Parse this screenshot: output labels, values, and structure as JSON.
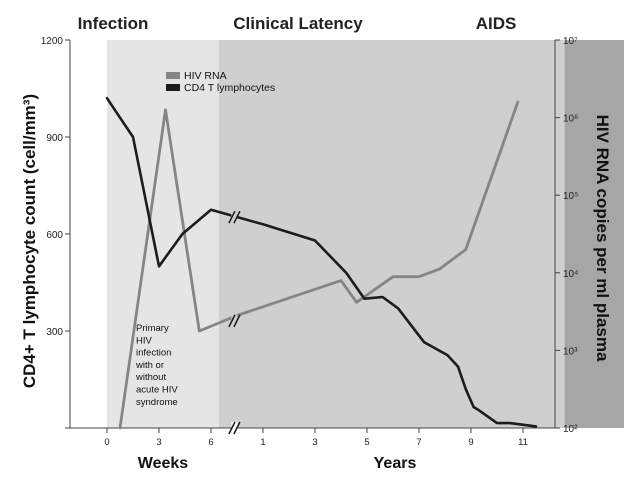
{
  "chart_data": {
    "type": "line",
    "phases": [
      {
        "name": "Infection",
        "start": 0,
        "end": 4.3,
        "color": "#e5e5e5"
      },
      {
        "name": "Clinical Latency",
        "start": 4.3,
        "end": 17.6,
        "color": "#cfcfcf"
      },
      {
        "name": "AIDS",
        "start": 17.6,
        "end": 21.5,
        "color": "#a6a6a6"
      }
    ],
    "x_groups": [
      "Weeks",
      "Years"
    ],
    "x_ticks": [
      {
        "pos": 0,
        "label": "0"
      },
      {
        "pos": 2,
        "label": "3"
      },
      {
        "pos": 4,
        "label": "6"
      },
      {
        "pos": 6,
        "label": "1"
      },
      {
        "pos": 8,
        "label": "3"
      },
      {
        "pos": 10,
        "label": "5"
      },
      {
        "pos": 12,
        "label": "7"
      },
      {
        "pos": 14,
        "label": "9"
      },
      {
        "pos": 16,
        "label": "11"
      }
    ],
    "xlim": [
      -1.45,
      17.6
    ],
    "left_axis": {
      "label": "CD4+ T lymphocyte count (cell/mm³)",
      "ylim": [
        0,
        1200
      ],
      "ticks": [
        "0",
        "300",
        "600",
        "900",
        "1200"
      ],
      "tick_values": [
        0,
        300,
        600,
        900,
        1200
      ],
      "visible_ticks": [
        "300",
        "600",
        "900",
        "1200"
      ]
    },
    "right_axis": {
      "label": "HIV RNA copies per ml plasma",
      "scale": "log",
      "ylim_exp": [
        2,
        7
      ],
      "ticks": [
        "10²",
        "10³",
        "10⁴",
        "10⁵",
        "10⁶",
        "10⁷"
      ],
      "tick_exps": [
        2,
        3,
        4,
        5,
        6,
        7
      ]
    },
    "series": [
      {
        "name": "HIV RNA",
        "color": "#858585",
        "axis": "right",
        "points": [
          [
            0.5,
            2
          ],
          [
            2.25,
            6.1
          ],
          [
            3.55,
            3.25
          ],
          [
            5,
            3.45
          ],
          [
            9,
            3.9
          ],
          [
            9.6,
            3.62
          ],
          [
            11,
            3.95
          ],
          [
            12,
            3.95
          ],
          [
            12.8,
            4.05
          ],
          [
            13.8,
            4.3
          ],
          [
            15.8,
            6.2
          ]
        ]
      },
      {
        "name": "CD4 T lymphocytes",
        "color": "#1c1c1c",
        "axis": "left",
        "points": [
          [
            0,
            1020
          ],
          [
            1,
            900
          ],
          [
            2,
            500
          ],
          [
            2.9,
            600
          ],
          [
            4,
            675
          ],
          [
            6,
            630
          ],
          [
            8,
            580
          ],
          [
            9.2,
            480
          ],
          [
            9.9,
            400
          ],
          [
            10.6,
            405
          ],
          [
            11.2,
            370
          ],
          [
            12.2,
            265
          ],
          [
            13.1,
            225
          ],
          [
            13.5,
            190
          ],
          [
            13.8,
            120
          ],
          [
            14.1,
            65
          ],
          [
            14.3,
            55
          ],
          [
            15,
            15
          ],
          [
            15.5,
            15
          ],
          [
            16.5,
            5
          ]
        ]
      }
    ],
    "axis_breaks": [
      {
        "x": 4.9,
        "series": "CD4 T lymphocytes",
        "value": 652
      },
      {
        "x": 4.9,
        "series": "HIV RNA",
        "value": 3.38
      },
      {
        "x": 4.9,
        "series": "baseline",
        "value": 0
      }
    ],
    "annotation": [
      "Primary",
      "HIV",
      "infection",
      "with or",
      "without",
      "acute HIV",
      "syndrome"
    ]
  }
}
